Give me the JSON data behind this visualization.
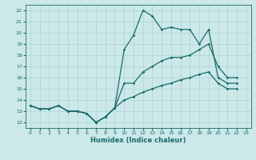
{
  "xlabel": "Humidex (Indice chaleur)",
  "xlim": [
    -0.5,
    23.5
  ],
  "ylim": [
    11.5,
    22.5
  ],
  "xticks": [
    0,
    1,
    2,
    3,
    4,
    5,
    6,
    7,
    8,
    9,
    10,
    11,
    12,
    13,
    14,
    15,
    16,
    17,
    18,
    19,
    20,
    21,
    22,
    23
  ],
  "yticks": [
    12,
    13,
    14,
    15,
    16,
    17,
    18,
    19,
    20,
    21,
    22
  ],
  "bg_color": "#cce8e8",
  "line_color": "#1a6b6b",
  "grid_color": "#aad4d4",
  "hours": [
    0,
    1,
    2,
    3,
    4,
    5,
    6,
    7,
    8,
    9,
    10,
    11,
    12,
    13,
    14,
    15,
    16,
    17,
    18,
    19,
    20,
    21,
    22,
    23
  ],
  "line_top": [
    13.5,
    13.2,
    13.2,
    13.5,
    13.0,
    13.0,
    12.8,
    12.0,
    12.5,
    13.3,
    18.5,
    19.8,
    22.0,
    21.5,
    20.3,
    20.5,
    20.3,
    20.3,
    19.0,
    20.3,
    16.0,
    15.5,
    15.5,
    null
  ],
  "line_mid": [
    13.5,
    13.2,
    13.2,
    13.5,
    13.0,
    13.0,
    12.8,
    12.0,
    12.5,
    13.3,
    15.5,
    15.5,
    16.5,
    17.0,
    17.5,
    17.8,
    17.8,
    18.0,
    18.5,
    19.0,
    17.0,
    16.0,
    16.0,
    null
  ],
  "line_bot": [
    13.5,
    13.2,
    13.2,
    13.5,
    13.0,
    13.0,
    12.8,
    12.0,
    12.5,
    13.3,
    14.0,
    14.3,
    14.7,
    15.0,
    15.3,
    15.5,
    15.8,
    16.0,
    16.3,
    16.5,
    15.5,
    15.0,
    15.0,
    null
  ]
}
